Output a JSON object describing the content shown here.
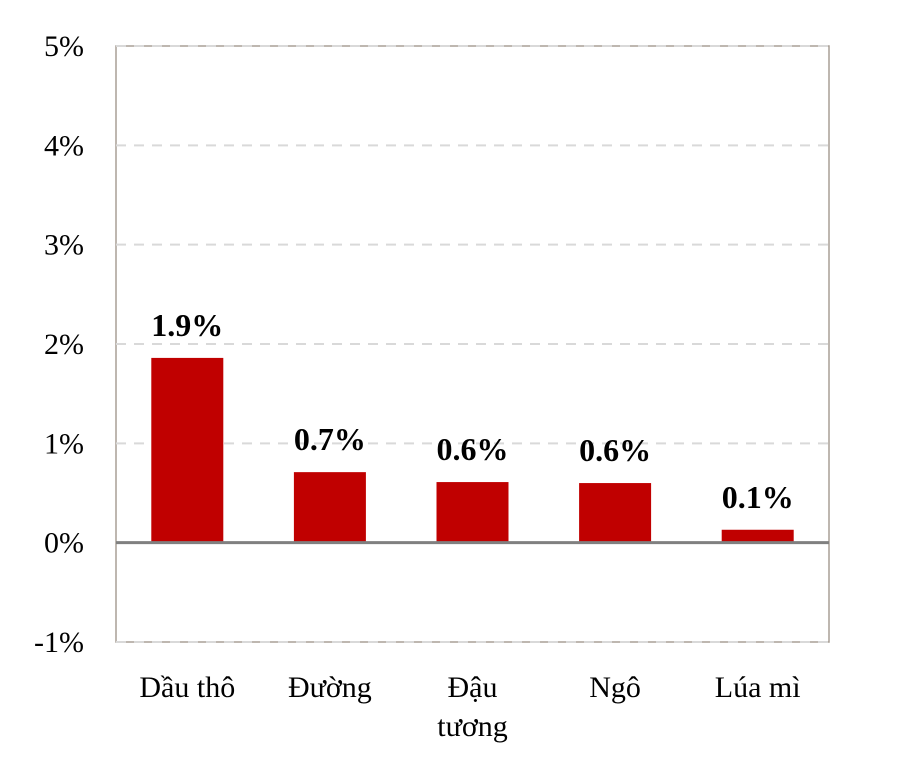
{
  "chart_data": {
    "type": "bar",
    "categories": [
      [
        "Dầu thô"
      ],
      [
        "Đường"
      ],
      [
        "Đậu",
        "tương"
      ],
      [
        "Ngô"
      ],
      [
        "Lúa mì"
      ]
    ],
    "values": [
      1.86,
      0.71,
      0.61,
      0.6,
      0.13
    ],
    "data_labels": [
      "1.9%",
      "0.7%",
      "0.6%",
      "0.6%",
      "0.1%"
    ],
    "yticks": [
      -1,
      0,
      1,
      2,
      3,
      4,
      5
    ],
    "ytick_labels": [
      "-1%",
      "0%",
      "1%",
      "2%",
      "3%",
      "4%",
      "5%"
    ],
    "ylim": [
      -1,
      5
    ],
    "grid": true,
    "colors": {
      "bar": "#c00000",
      "grid": "#d9d9d9",
      "zero_line": "#808080",
      "frame": "#a89f95"
    }
  }
}
